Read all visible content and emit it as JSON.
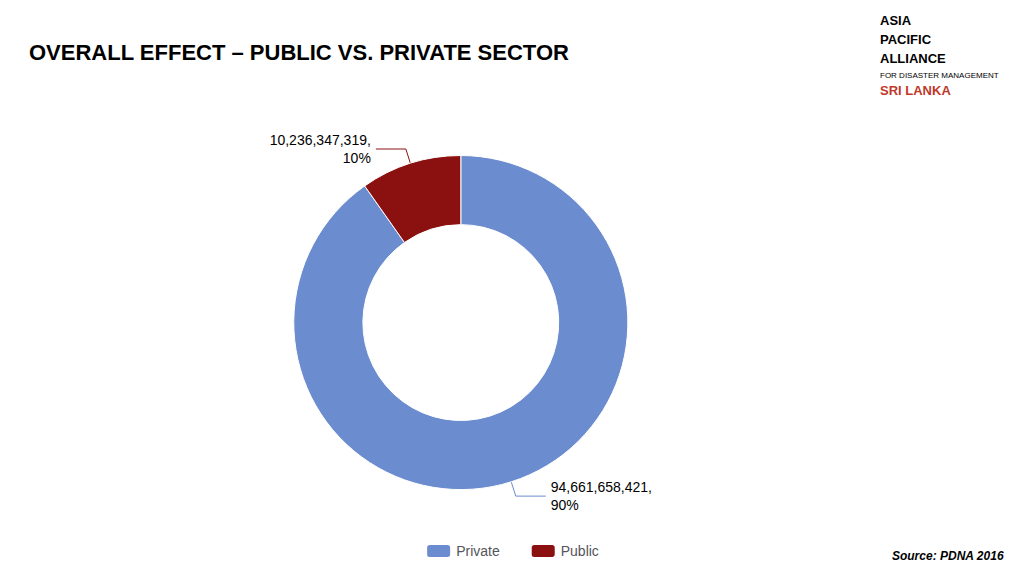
{
  "chart_data": {
    "type": "pie",
    "title": "OVERALL EFFECT – PUBLIC VS. PRIVATE SECTOR",
    "categories": [
      "Private",
      "Public"
    ],
    "values": [
      94661658421,
      10236347319
    ],
    "value_labels": [
      "94,661,658,421,\n90%",
      "10,236,347,319,\n10%"
    ],
    "colors": [
      "#6b8cce",
      "#8b1010"
    ],
    "data_labels": true,
    "legend": "bottom",
    "annotations": [
      {
        "text": "ASIA"
      },
      {
        "text": "PACIFIC"
      },
      {
        "text": "ALLIANCE"
      },
      {
        "text": "FOR DISASTER MANAGEMENT"
      },
      {
        "text": "SRI LANKA",
        "color": "#c0392b"
      },
      {
        "text": "Source: PDNA 2016"
      }
    ]
  }
}
